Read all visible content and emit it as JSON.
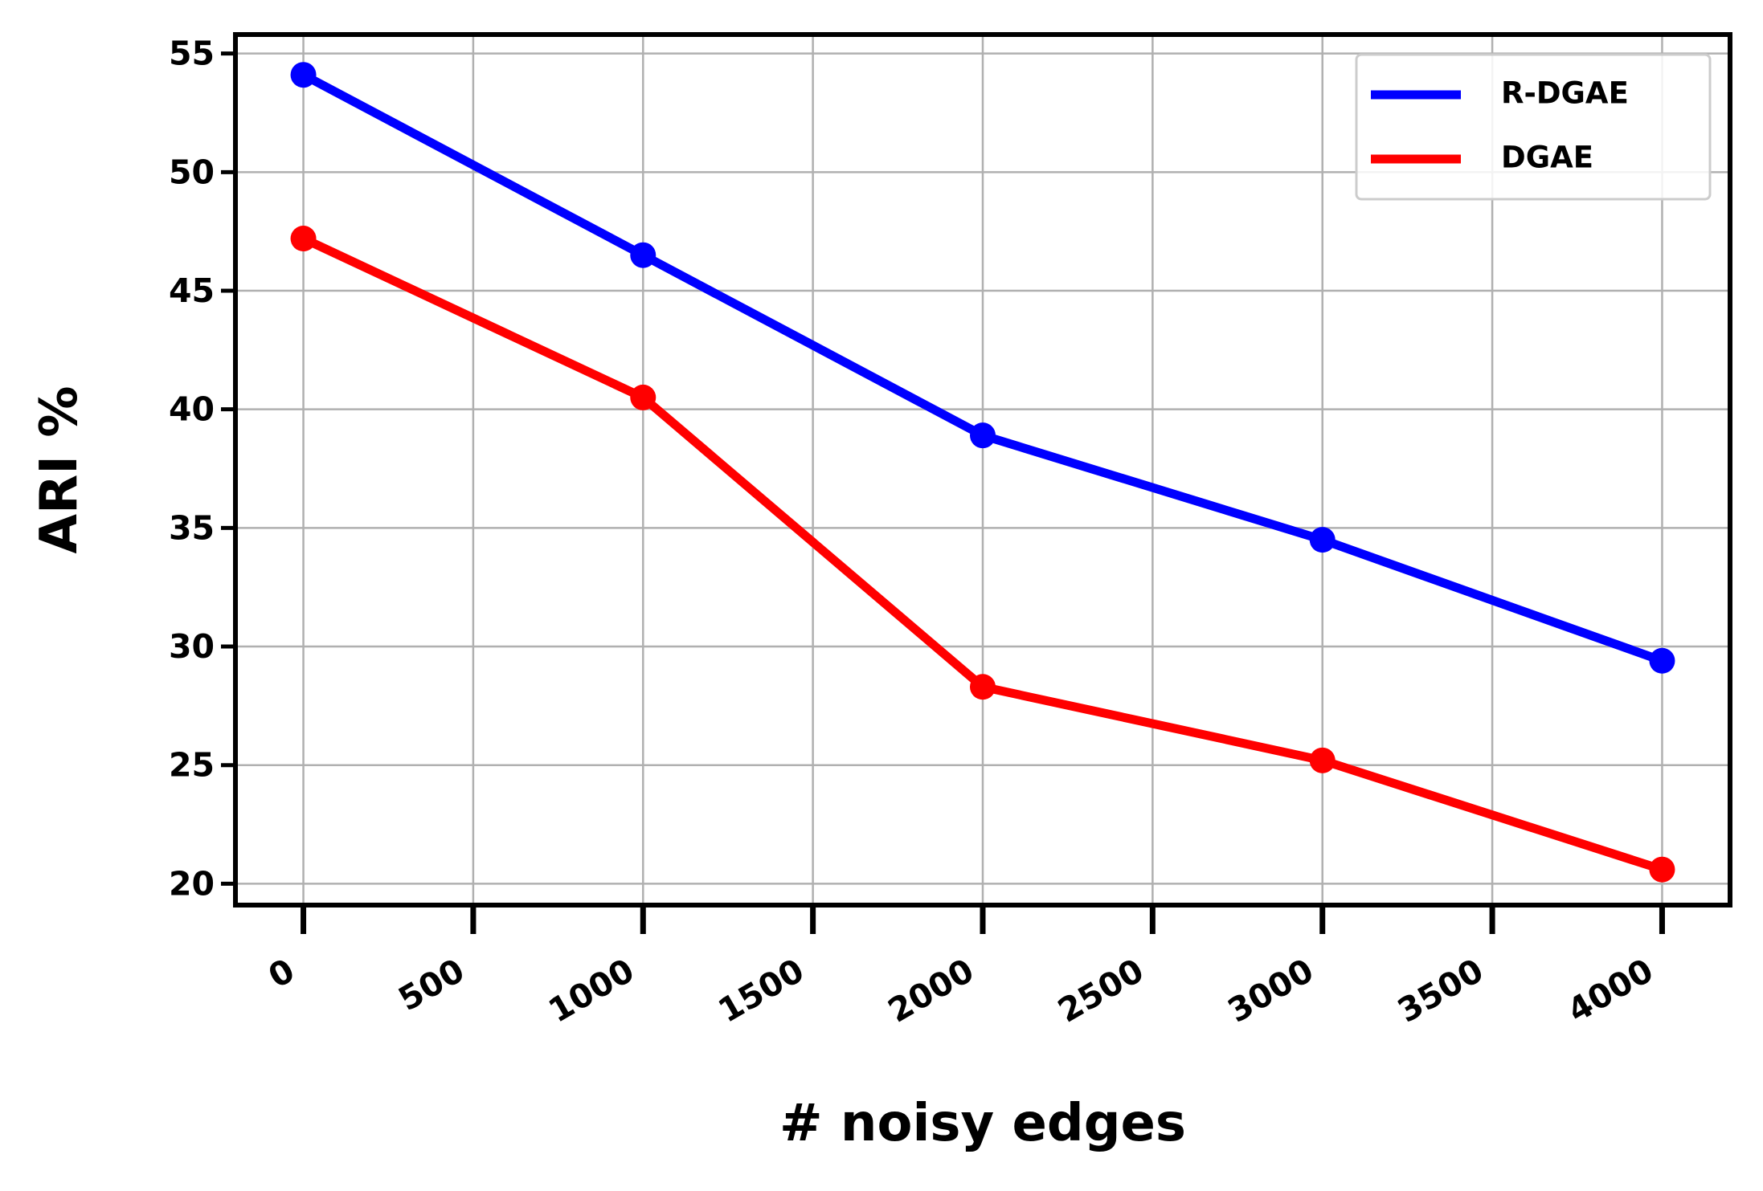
{
  "chart_data": {
    "type": "line",
    "x_label": "# noisy edges",
    "y_label": "ARI %",
    "x": [
      0,
      1000,
      2000,
      3000,
      4000
    ],
    "series": [
      {
        "name": "R-DGAE",
        "color": "#0000ff",
        "values": [
          54.1,
          46.5,
          38.9,
          34.5,
          29.4
        ]
      },
      {
        "name": "DGAE",
        "color": "#ff0000",
        "values": [
          47.2,
          40.5,
          28.3,
          25.2,
          20.6
        ]
      }
    ],
    "xlim": [
      -200,
      4200
    ],
    "xticks": [
      0,
      500,
      1000,
      1500,
      2000,
      2500,
      3000,
      3500,
      4000
    ],
    "ylim": [
      19.1,
      55.8
    ],
    "yticks": [
      20,
      25,
      30,
      35,
      40,
      45,
      50,
      55
    ],
    "grid": true,
    "legend": "upper right"
  }
}
